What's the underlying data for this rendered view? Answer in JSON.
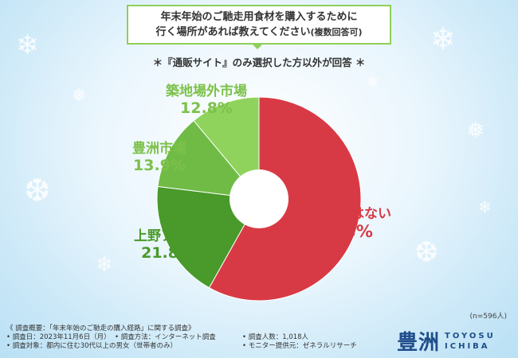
{
  "title": {
    "line1": "年末年始のご馳走用食材を購入するために",
    "line2": "行く場所があれば教えてください",
    "line2_suffix": "(複数回答可)"
  },
  "note": "＊『通販サイト』のみ選択した方以外が回答 ＊",
  "sample_size": "(n=596人)",
  "footer": {
    "line1": "《 調査概要：「年末年始のご馳走の購入経路」に関する調査》",
    "date": "• 調査日：2023年11月6日（月）",
    "method": "• 調査方法：インターネット調査",
    "count": "• 調査人数：1,018人",
    "target": "• 調査対象：都内に住む30代以上の男女（世帯者のみ）",
    "provider": "• モニター提供元：ゼネラルリサーチ"
  },
  "logo": {
    "kanji": "豊洲",
    "line1": "TOYOSU",
    "line2": "ICHIBA"
  },
  "colors": {
    "red": "#d83a45",
    "dark_green": "#4a9a2b",
    "mid_green": "#6fbb46",
    "light_green": "#8fd35d",
    "frame_green": "#8fcf5b"
  },
  "chart_data": {
    "type": "pie",
    "donut": true,
    "categories": [
      "この中にはない",
      "上野アメ横",
      "豊洲市場",
      "築地場外市場"
    ],
    "values": [
      67.3,
      21.8,
      13.9,
      12.8
    ],
    "labels": [
      "67.3%",
      "21.8%",
      "13.9%",
      "12.8%"
    ],
    "unit": "%"
  }
}
